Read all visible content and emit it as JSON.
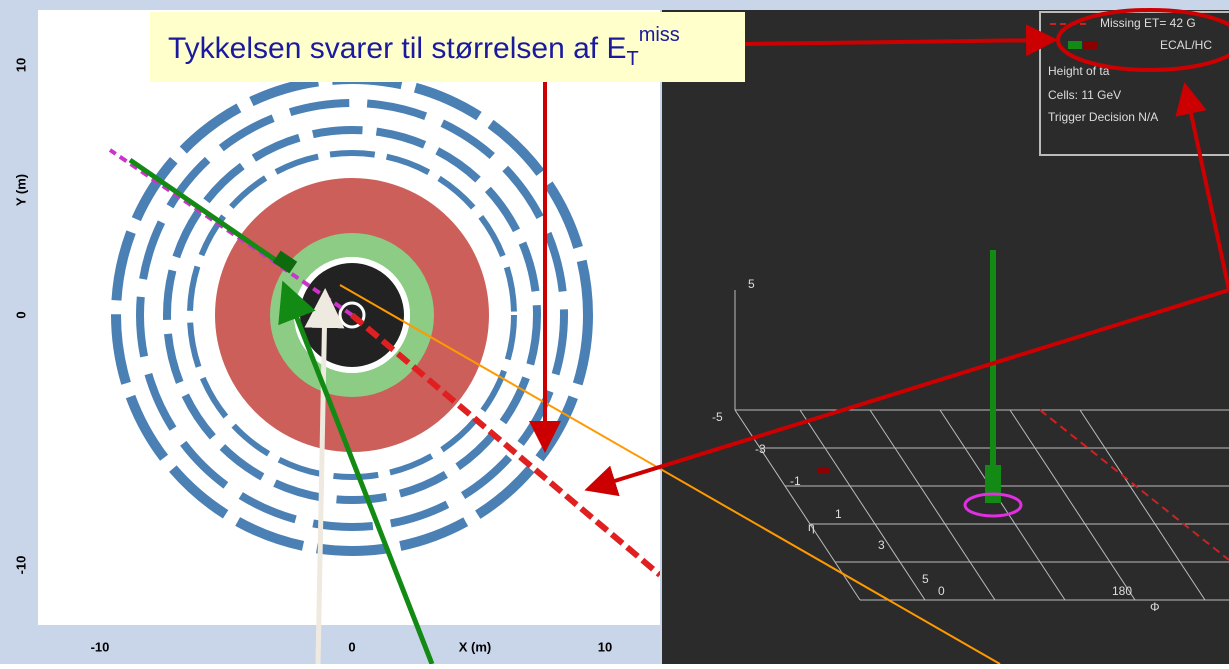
{
  "annotation": {
    "text": "Tykkelsen  svarer til størrelsen af E",
    "subscript": "T",
    "superscript": "miss"
  },
  "left_view": {
    "y_label": "Y (m)",
    "x_label": "X (m)",
    "y_ticks": [
      "10",
      "0",
      "-10"
    ],
    "x_ticks": [
      "-10",
      "0",
      "10"
    ]
  },
  "right_view": {
    "legend": [
      "Missing ET= 42 G",
      "ECAL/HC",
      "Height of ta",
      "Cells: 11 GeV",
      "Trigger Decision N/A"
    ],
    "height_tick": "5",
    "eta_label": "η",
    "eta_ticks": [
      "-5",
      "-3",
      "-1",
      "1",
      "3",
      "5"
    ],
    "phi_label": "Φ",
    "phi_ticks": [
      "0",
      "180"
    ]
  }
}
